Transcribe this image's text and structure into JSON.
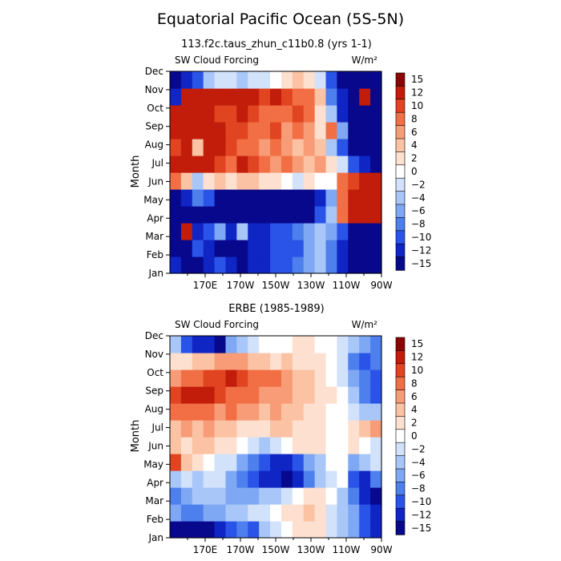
{
  "figure": {
    "title": "Equatorial Pacific Ocean (5S-5N)"
  },
  "color_scale": {
    "colors": [
      "#08088c",
      "#0f25c4",
      "#2a54e8",
      "#4d7fed",
      "#7ea8f3",
      "#a8c7f8",
      "#d2e2fb",
      "#ffffff",
      "#fde0cf",
      "#fbc2a3",
      "#f79c76",
      "#f26f45",
      "#e04420",
      "#c21c0a",
      "#8c0505"
    ],
    "boundaries": [
      -15,
      -12,
      -10,
      -8,
      -6,
      -4,
      -2,
      0,
      2,
      4,
      6,
      8,
      10,
      12,
      15
    ],
    "labels": [
      "15",
      "12",
      "10",
      "8",
      "6",
      "4",
      "2",
      "0",
      "−2",
      "−4",
      "−6",
      "−8",
      "−10",
      "−12",
      "−15"
    ]
  },
  "chart_data": [
    {
      "type": "heatmap",
      "title": "113.f2c.taus_zhun_c11b0.8 (yrs 1-1)",
      "subtitle_left": "SW Cloud Forcing",
      "units": "W/m²",
      "xlabel": "",
      "ylabel": "Month",
      "x_range": [
        "150E",
        "90W"
      ],
      "x_ticks": [
        "170E",
        "170W",
        "150W",
        "130W",
        "110W",
        "90W"
      ],
      "y_ticks": [
        "Jan",
        "Feb",
        "Mar",
        "Apr",
        "May",
        "Jun",
        "Jul",
        "Aug",
        "Sep",
        "Oct",
        "Nov",
        "Dec"
      ],
      "value_range": [
        -15,
        15
      ],
      "rows": [
        [
          -12,
          -15,
          -14,
          -11,
          -10,
          -12,
          -13,
          -12,
          -11,
          -10,
          -9,
          -8,
          -5,
          -3,
          -8,
          -12,
          -15,
          -15,
          -15
        ],
        [
          -15,
          -14,
          -10,
          -12,
          -13,
          -14,
          -13,
          -12,
          -11,
          -10,
          -10,
          -9,
          -6,
          -4,
          -7,
          -12,
          -15,
          -15,
          -15
        ],
        [
          -13,
          13,
          -12,
          -10,
          -6,
          -12,
          -3,
          -11,
          -12,
          -10,
          -9,
          -8,
          -6,
          -3,
          -6,
          -10,
          -14,
          -15,
          -15
        ],
        [
          -15,
          -14,
          -15,
          -15,
          -15,
          -15,
          -15,
          -15,
          -14,
          -15,
          -15,
          -14,
          -13,
          -9,
          -4,
          8,
          13,
          15,
          15
        ],
        [
          -15,
          -12,
          -8,
          -10,
          -13,
          -15,
          -14,
          -15,
          -14,
          -14,
          -15,
          -15,
          -14,
          -12,
          -6,
          9,
          14,
          15,
          15
        ],
        [
          8,
          5,
          -4,
          2,
          4,
          3,
          5,
          4,
          3,
          2,
          0,
          -1,
          2,
          0,
          1,
          8,
          11,
          12,
          14
        ],
        [
          12,
          15,
          13,
          14,
          10,
          9,
          12,
          10,
          8,
          7,
          9,
          6,
          5,
          6,
          2,
          -2,
          -9,
          -12,
          -15
        ],
        [
          10,
          12,
          5,
          13,
          12,
          10,
          9,
          8,
          6,
          8,
          6,
          5,
          6,
          4,
          -3,
          -10,
          -15,
          -15,
          -15
        ],
        [
          12,
          15,
          14,
          13,
          12,
          11,
          10,
          9,
          8,
          10,
          7,
          8,
          6,
          3,
          8,
          -6,
          -15,
          -15,
          -15
        ],
        [
          13,
          15,
          15,
          12,
          10,
          11,
          12,
          10,
          9,
          8,
          9,
          10,
          8,
          2,
          -4,
          -12,
          -15,
          -15,
          -15
        ],
        [
          -12,
          13,
          15,
          15,
          14,
          15,
          13,
          12,
          11,
          12,
          10,
          9,
          8,
          4,
          -8,
          -12,
          -15,
          14,
          -15
        ],
        [
          -15,
          -12,
          -10,
          -4,
          -2,
          -1,
          -3,
          -2,
          -1,
          0,
          2,
          4,
          3,
          -2,
          -9,
          -15,
          -15,
          -15,
          -15
        ]
      ]
    },
    {
      "type": "heatmap",
      "title": "ERBE (1985-1989)",
      "subtitle_left": "SW Cloud Forcing",
      "units": "W/m²",
      "xlabel": "",
      "ylabel": "Month",
      "x_range": [
        "150E",
        "90W"
      ],
      "x_ticks": [
        "170E",
        "170W",
        "150W",
        "130W",
        "110W",
        "90W"
      ],
      "y_ticks": [
        "Jan",
        "Feb",
        "Mar",
        "Apr",
        "May",
        "Jun",
        "Jul",
        "Aug",
        "Sep",
        "Oct",
        "Nov",
        "Dec"
      ],
      "value_range": [
        -15,
        15
      ],
      "rows": [
        [
          -14,
          -15,
          -15,
          -13,
          -11,
          -9,
          -7,
          -9,
          -4,
          -1,
          1,
          2,
          3,
          2,
          -1,
          -3,
          -6,
          -10,
          -12
        ],
        [
          -6,
          -8,
          -8,
          -6,
          -5,
          -4,
          -3,
          -2,
          -1,
          0,
          2,
          3,
          4,
          3,
          -1,
          -3,
          -6,
          -10,
          -12
        ],
        [
          -8,
          -6,
          -4,
          -3,
          -4,
          -6,
          -5,
          -5,
          -4,
          -3,
          -2,
          0,
          2,
          2,
          0,
          -4,
          -8,
          -12,
          -13
        ],
        [
          -3,
          -2,
          -3,
          -2,
          -2,
          -5,
          -7,
          -10,
          -11,
          -12,
          -13,
          -11,
          -8,
          -4,
          -2,
          1,
          -10,
          -12,
          -8
        ],
        [
          10,
          4,
          2,
          1,
          -1,
          -2,
          -5,
          -8,
          -10,
          -11,
          -11,
          -9,
          -6,
          -3,
          0,
          1,
          -6,
          -3,
          -2
        ],
        [
          4,
          3,
          4,
          5,
          3,
          2,
          0,
          -2,
          -3,
          -2,
          0,
          2,
          3,
          2,
          1,
          0,
          2,
          1,
          -1
        ],
        [
          5,
          6,
          5,
          6,
          4,
          5,
          3,
          2,
          3,
          4,
          4,
          3,
          2,
          2,
          1,
          1,
          3,
          5,
          6
        ],
        [
          8,
          9,
          8,
          9,
          7,
          8,
          7,
          6,
          5,
          6,
          5,
          4,
          3,
          2,
          1,
          0,
          -1,
          -3,
          -4
        ],
        [
          10,
          13,
          12,
          12,
          10,
          9,
          9,
          8,
          7,
          7,
          6,
          5,
          4,
          3,
          2,
          0,
          -4,
          -8,
          -10
        ],
        [
          6,
          8,
          9,
          10,
          11,
          12,
          11,
          9,
          8,
          8,
          7,
          5,
          4,
          3,
          1,
          -1,
          -6,
          -8,
          -10
        ],
        [
          2,
          3,
          4,
          5,
          6,
          7,
          6,
          5,
          4,
          3,
          4,
          3,
          2,
          2,
          1,
          -1,
          -8,
          -9,
          -7
        ],
        [
          -4,
          -10,
          -11,
          -12,
          -13,
          -6,
          -3,
          -1,
          0,
          1,
          1,
          2,
          2,
          1,
          0,
          -1,
          -4,
          -6,
          -8
        ]
      ]
    }
  ]
}
